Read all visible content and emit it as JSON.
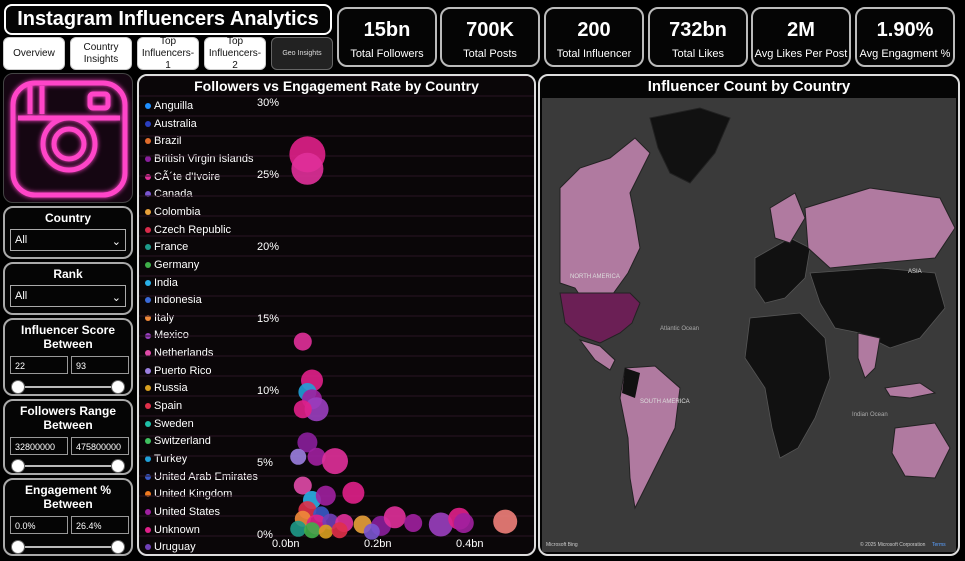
{
  "app_title": "Instagram Influencers Analytics",
  "tabs": [
    {
      "label": "Overview",
      "style": "light"
    },
    {
      "label": "Country Insights",
      "style": "light"
    },
    {
      "label": "Top Influencers-1",
      "style": "light"
    },
    {
      "label": "Top Influencers-2",
      "style": "light"
    },
    {
      "label": "Geo Insights",
      "style": "dark"
    }
  ],
  "kpis": [
    {
      "value": "15bn",
      "label": "Total Followers"
    },
    {
      "value": "700K",
      "label": "Total Posts"
    },
    {
      "value": "200",
      "label": "Total Influencer"
    },
    {
      "value": "732bn",
      "label": "Total Likes"
    },
    {
      "value": "2M",
      "label": "Avg Likes Per Post"
    },
    {
      "value": "1.90%",
      "label": "Avg Engagment %"
    }
  ],
  "slicers": {
    "country": {
      "title": "Country",
      "selected": "All"
    },
    "rank": {
      "title": "Rank",
      "selected": "All"
    },
    "influencer_score": {
      "title": "Influencer Score Between",
      "min": "22",
      "max": "93"
    },
    "followers_range": {
      "title": "Followers Range Between",
      "min": "32800000",
      "max": "475800000"
    },
    "engagement": {
      "title": "Engagement % Between",
      "min": "0.0%",
      "max": "26.4%"
    }
  },
  "scatter": {
    "title": "Followers vs Engagement Rate by Country",
    "legend": [
      {
        "name": "Anguilla",
        "color": "#1f8fff"
      },
      {
        "name": "Australia",
        "color": "#2b3fbf"
      },
      {
        "name": "Brazil",
        "color": "#e06c2c"
      },
      {
        "name": "British Virgin Islands",
        "color": "#8a1f9c"
      },
      {
        "name": "CÃ´te d'Ivoire",
        "color": "#e0309a"
      },
      {
        "name": "Canada",
        "color": "#7a56d0"
      },
      {
        "name": "Colombia",
        "color": "#e8a13a"
      },
      {
        "name": "Czech Republic",
        "color": "#d92b4b"
      },
      {
        "name": "France",
        "color": "#1e9a8a"
      },
      {
        "name": "Germany",
        "color": "#3fae49"
      },
      {
        "name": "India",
        "color": "#2ab0e8"
      },
      {
        "name": "Indonesia",
        "color": "#3a6ad8"
      },
      {
        "name": "Italy",
        "color": "#f08a3a"
      },
      {
        "name": "Mexico",
        "color": "#9a3fc0"
      },
      {
        "name": "Netherlands",
        "color": "#e04aa8"
      },
      {
        "name": "Puerto Rico",
        "color": "#9b7fe0"
      },
      {
        "name": "Russia",
        "color": "#d8a020"
      },
      {
        "name": "Spain",
        "color": "#e0304a"
      },
      {
        "name": "Sweden",
        "color": "#20c0a8"
      },
      {
        "name": "Switzerland",
        "color": "#40c060"
      },
      {
        "name": "Turkey",
        "color": "#20a0d8"
      },
      {
        "name": "United Arab Emirates",
        "color": "#3a5ac8"
      },
      {
        "name": "United Kingdom",
        "color": "#f07a20"
      },
      {
        "name": "United States",
        "color": "#a020a0"
      },
      {
        "name": "Unknown",
        "color": "#e0208a"
      },
      {
        "name": "Uruguay",
        "color": "#7040b8"
      }
    ],
    "y_ticks": [
      "30%",
      "25%",
      "20%",
      "15%",
      "10%",
      "5%",
      "0%"
    ],
    "x_ticks": [
      "0.0bn",
      "0.2bn",
      "0.4bn"
    ]
  },
  "chart_data": {
    "type": "scatter",
    "title": "Followers vs Engagement Rate by Country",
    "xlabel": "",
    "ylabel": "",
    "xlim": [
      0,
      0.5
    ],
    "ylim": [
      0,
      30
    ],
    "x_unit": "bn followers",
    "y_unit": "% engagement",
    "points": [
      {
        "x": 0.04,
        "y": 26.5,
        "r": 18,
        "color": "#e0208a"
      },
      {
        "x": 0.04,
        "y": 25.5,
        "r": 16,
        "color": "#e0309a"
      },
      {
        "x": 0.03,
        "y": 13.5,
        "r": 9,
        "color": "#e0309a"
      },
      {
        "x": 0.05,
        "y": 10.8,
        "r": 11,
        "color": "#e0208a"
      },
      {
        "x": 0.04,
        "y": 10.0,
        "r": 9,
        "color": "#20a0d8"
      },
      {
        "x": 0.05,
        "y": 9.5,
        "r": 10,
        "color": "#a020a0"
      },
      {
        "x": 0.06,
        "y": 8.8,
        "r": 12,
        "color": "#9a3fc0"
      },
      {
        "x": 0.03,
        "y": 8.8,
        "r": 9,
        "color": "#e0208a"
      },
      {
        "x": 0.04,
        "y": 6.5,
        "r": 10,
        "color": "#8a1f9c"
      },
      {
        "x": 0.06,
        "y": 5.5,
        "r": 9,
        "color": "#a020a0"
      },
      {
        "x": 0.02,
        "y": 5.5,
        "r": 8,
        "color": "#9b7fe0"
      },
      {
        "x": 0.1,
        "y": 5.2,
        "r": 13,
        "color": "#e0309a"
      },
      {
        "x": 0.03,
        "y": 3.5,
        "r": 9,
        "color": "#e04aa8"
      },
      {
        "x": 0.05,
        "y": 2.5,
        "r": 9,
        "color": "#2ab0e8"
      },
      {
        "x": 0.08,
        "y": 2.8,
        "r": 10,
        "color": "#a020a0"
      },
      {
        "x": 0.14,
        "y": 3.0,
        "r": 11,
        "color": "#e0208a"
      },
      {
        "x": 0.04,
        "y": 1.8,
        "r": 9,
        "color": "#e0304a"
      },
      {
        "x": 0.07,
        "y": 1.5,
        "r": 8,
        "color": "#3a5ac8"
      },
      {
        "x": 0.03,
        "y": 1.2,
        "r": 8,
        "color": "#f08a3a"
      },
      {
        "x": 0.06,
        "y": 0.8,
        "r": 10,
        "color": "#e0208a"
      },
      {
        "x": 0.09,
        "y": 1.0,
        "r": 8,
        "color": "#7040b8"
      },
      {
        "x": 0.12,
        "y": 0.9,
        "r": 9,
        "color": "#e0309a"
      },
      {
        "x": 0.16,
        "y": 0.8,
        "r": 9,
        "color": "#e8a13a"
      },
      {
        "x": 0.2,
        "y": 0.7,
        "r": 10,
        "color": "#8a1f9c"
      },
      {
        "x": 0.23,
        "y": 1.3,
        "r": 11,
        "color": "#e0309a"
      },
      {
        "x": 0.27,
        "y": 0.9,
        "r": 9,
        "color": "#a020a0"
      },
      {
        "x": 0.33,
        "y": 0.8,
        "r": 12,
        "color": "#9a3fc0"
      },
      {
        "x": 0.37,
        "y": 1.2,
        "r": 11,
        "color": "#e0208a"
      },
      {
        "x": 0.38,
        "y": 0.9,
        "r": 10,
        "color": "#a020a0"
      },
      {
        "x": 0.47,
        "y": 1.0,
        "r": 12,
        "color": "#f0807a"
      },
      {
        "x": 0.02,
        "y": 0.5,
        "r": 8,
        "color": "#1e9a8a"
      },
      {
        "x": 0.05,
        "y": 0.4,
        "r": 8,
        "color": "#3fae49"
      },
      {
        "x": 0.08,
        "y": 0.3,
        "r": 7,
        "color": "#d8a020"
      },
      {
        "x": 0.11,
        "y": 0.4,
        "r": 8,
        "color": "#e0304a"
      },
      {
        "x": 0.18,
        "y": 0.3,
        "r": 8,
        "color": "#7a56d0"
      }
    ]
  },
  "map": {
    "title": "Influencer Count by Country",
    "labels": {
      "north_america": "NORTH AMERICA",
      "south_america": "SOUTH AMERICA",
      "asia": "ASIA",
      "atlantic": "Atlantic Ocean",
      "indian": "Indian Ocean",
      "bing": "Microsoft Bing",
      "copyright": "© 2025 Microsoft Corporation",
      "terms": "Terms"
    },
    "highlight_color": "#b07aa0",
    "top_color": "#6b1f55"
  }
}
